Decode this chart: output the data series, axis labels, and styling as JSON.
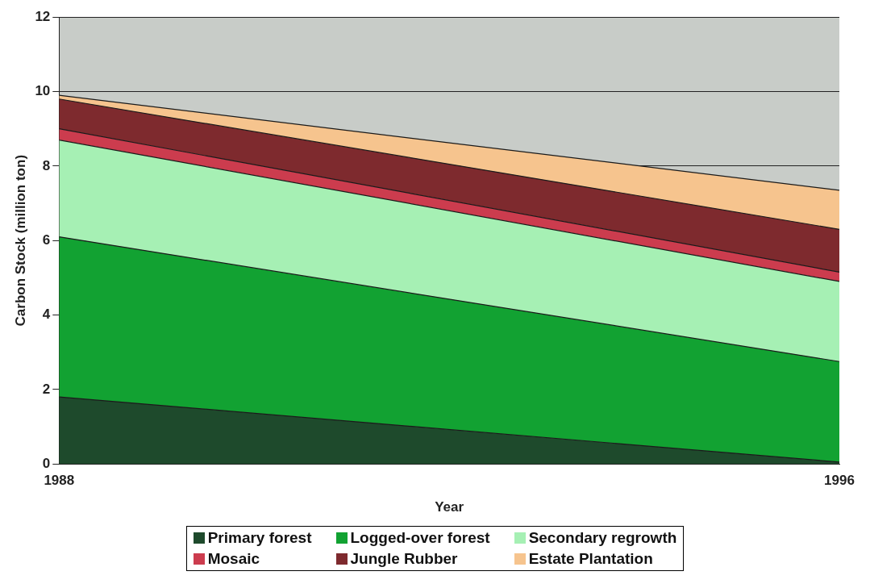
{
  "chart_data": {
    "type": "area",
    "stacked": true,
    "xlabel": "Year",
    "ylabel": "Carbon Stock (million ton)",
    "x": [
      1988,
      1996
    ],
    "xlim": [
      1988,
      1996
    ],
    "xticks": [
      1988,
      1996
    ],
    "ylim": [
      0,
      12
    ],
    "yticks": [
      0,
      2,
      4,
      6,
      8,
      10,
      12
    ],
    "grid": "y",
    "legend": "bottom",
    "series": [
      {
        "name": "Primary forest",
        "color": "#1e4a2c",
        "values": [
          1.8,
          0.05
        ]
      },
      {
        "name": "Logged-over forest",
        "color": "#12a232",
        "values": [
          4.3,
          2.7
        ]
      },
      {
        "name": "Secondary regrowth",
        "color": "#a6f0b4",
        "values": [
          2.6,
          2.15
        ]
      },
      {
        "name": "Mosaic",
        "color": "#cc3c4e",
        "values": [
          0.3,
          0.25
        ]
      },
      {
        "name": "Jungle Rubber",
        "color": "#7e2a2e",
        "values": [
          0.8,
          1.15
        ]
      },
      {
        "name": "Estate Plantation",
        "color": "#f6c48e",
        "values": [
          0.1,
          1.05
        ]
      }
    ]
  }
}
